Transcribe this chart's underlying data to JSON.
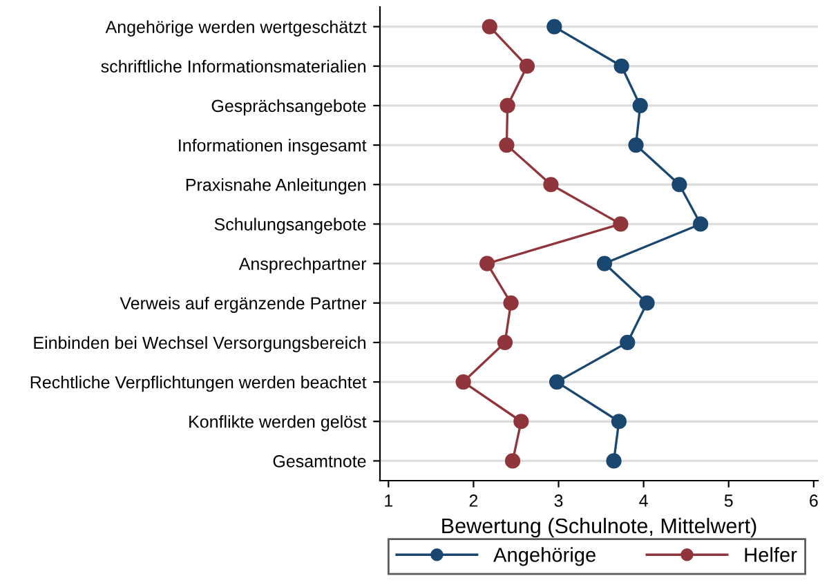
{
  "chart_data": {
    "type": "line",
    "orientation": "horizontal",
    "xlabel": "Bewertung (Schulnote, Mittelwert)",
    "categories": [
      "Angehörige werden wertgeschätzt",
      "schriftliche Informationsmaterialien",
      "Gesprächsangebote",
      "Informationen insgesamt",
      "Praxisnahe Anleitungen",
      "Schulungsangebote",
      "Ansprechpartner",
      "Verweis auf ergänzende Partner",
      "Einbinden bei Wechsel Versorgungsbereich",
      "Rechtliche Verpflichtungen werden beachtet",
      "Konflikte werden gelöst",
      "Gesamtnote"
    ],
    "series": [
      {
        "name": "Angehörige",
        "color": "#1a476f",
        "values": [
          2.95,
          3.74,
          3.96,
          3.91,
          4.42,
          4.67,
          3.54,
          4.04,
          3.81,
          2.98,
          3.71,
          3.65
        ]
      },
      {
        "name": "Helfer",
        "color": "#90353b",
        "values": [
          2.19,
          2.63,
          2.4,
          2.39,
          2.91,
          3.73,
          2.16,
          2.44,
          2.37,
          1.88,
          2.56,
          2.46
        ]
      }
    ],
    "xlim": [
      0.9,
      6.05
    ],
    "xticks": [
      1,
      2,
      3,
      4,
      5,
      6
    ],
    "grid": "y",
    "legend": "bottom",
    "marker": "circle",
    "line_style": "solid"
  }
}
